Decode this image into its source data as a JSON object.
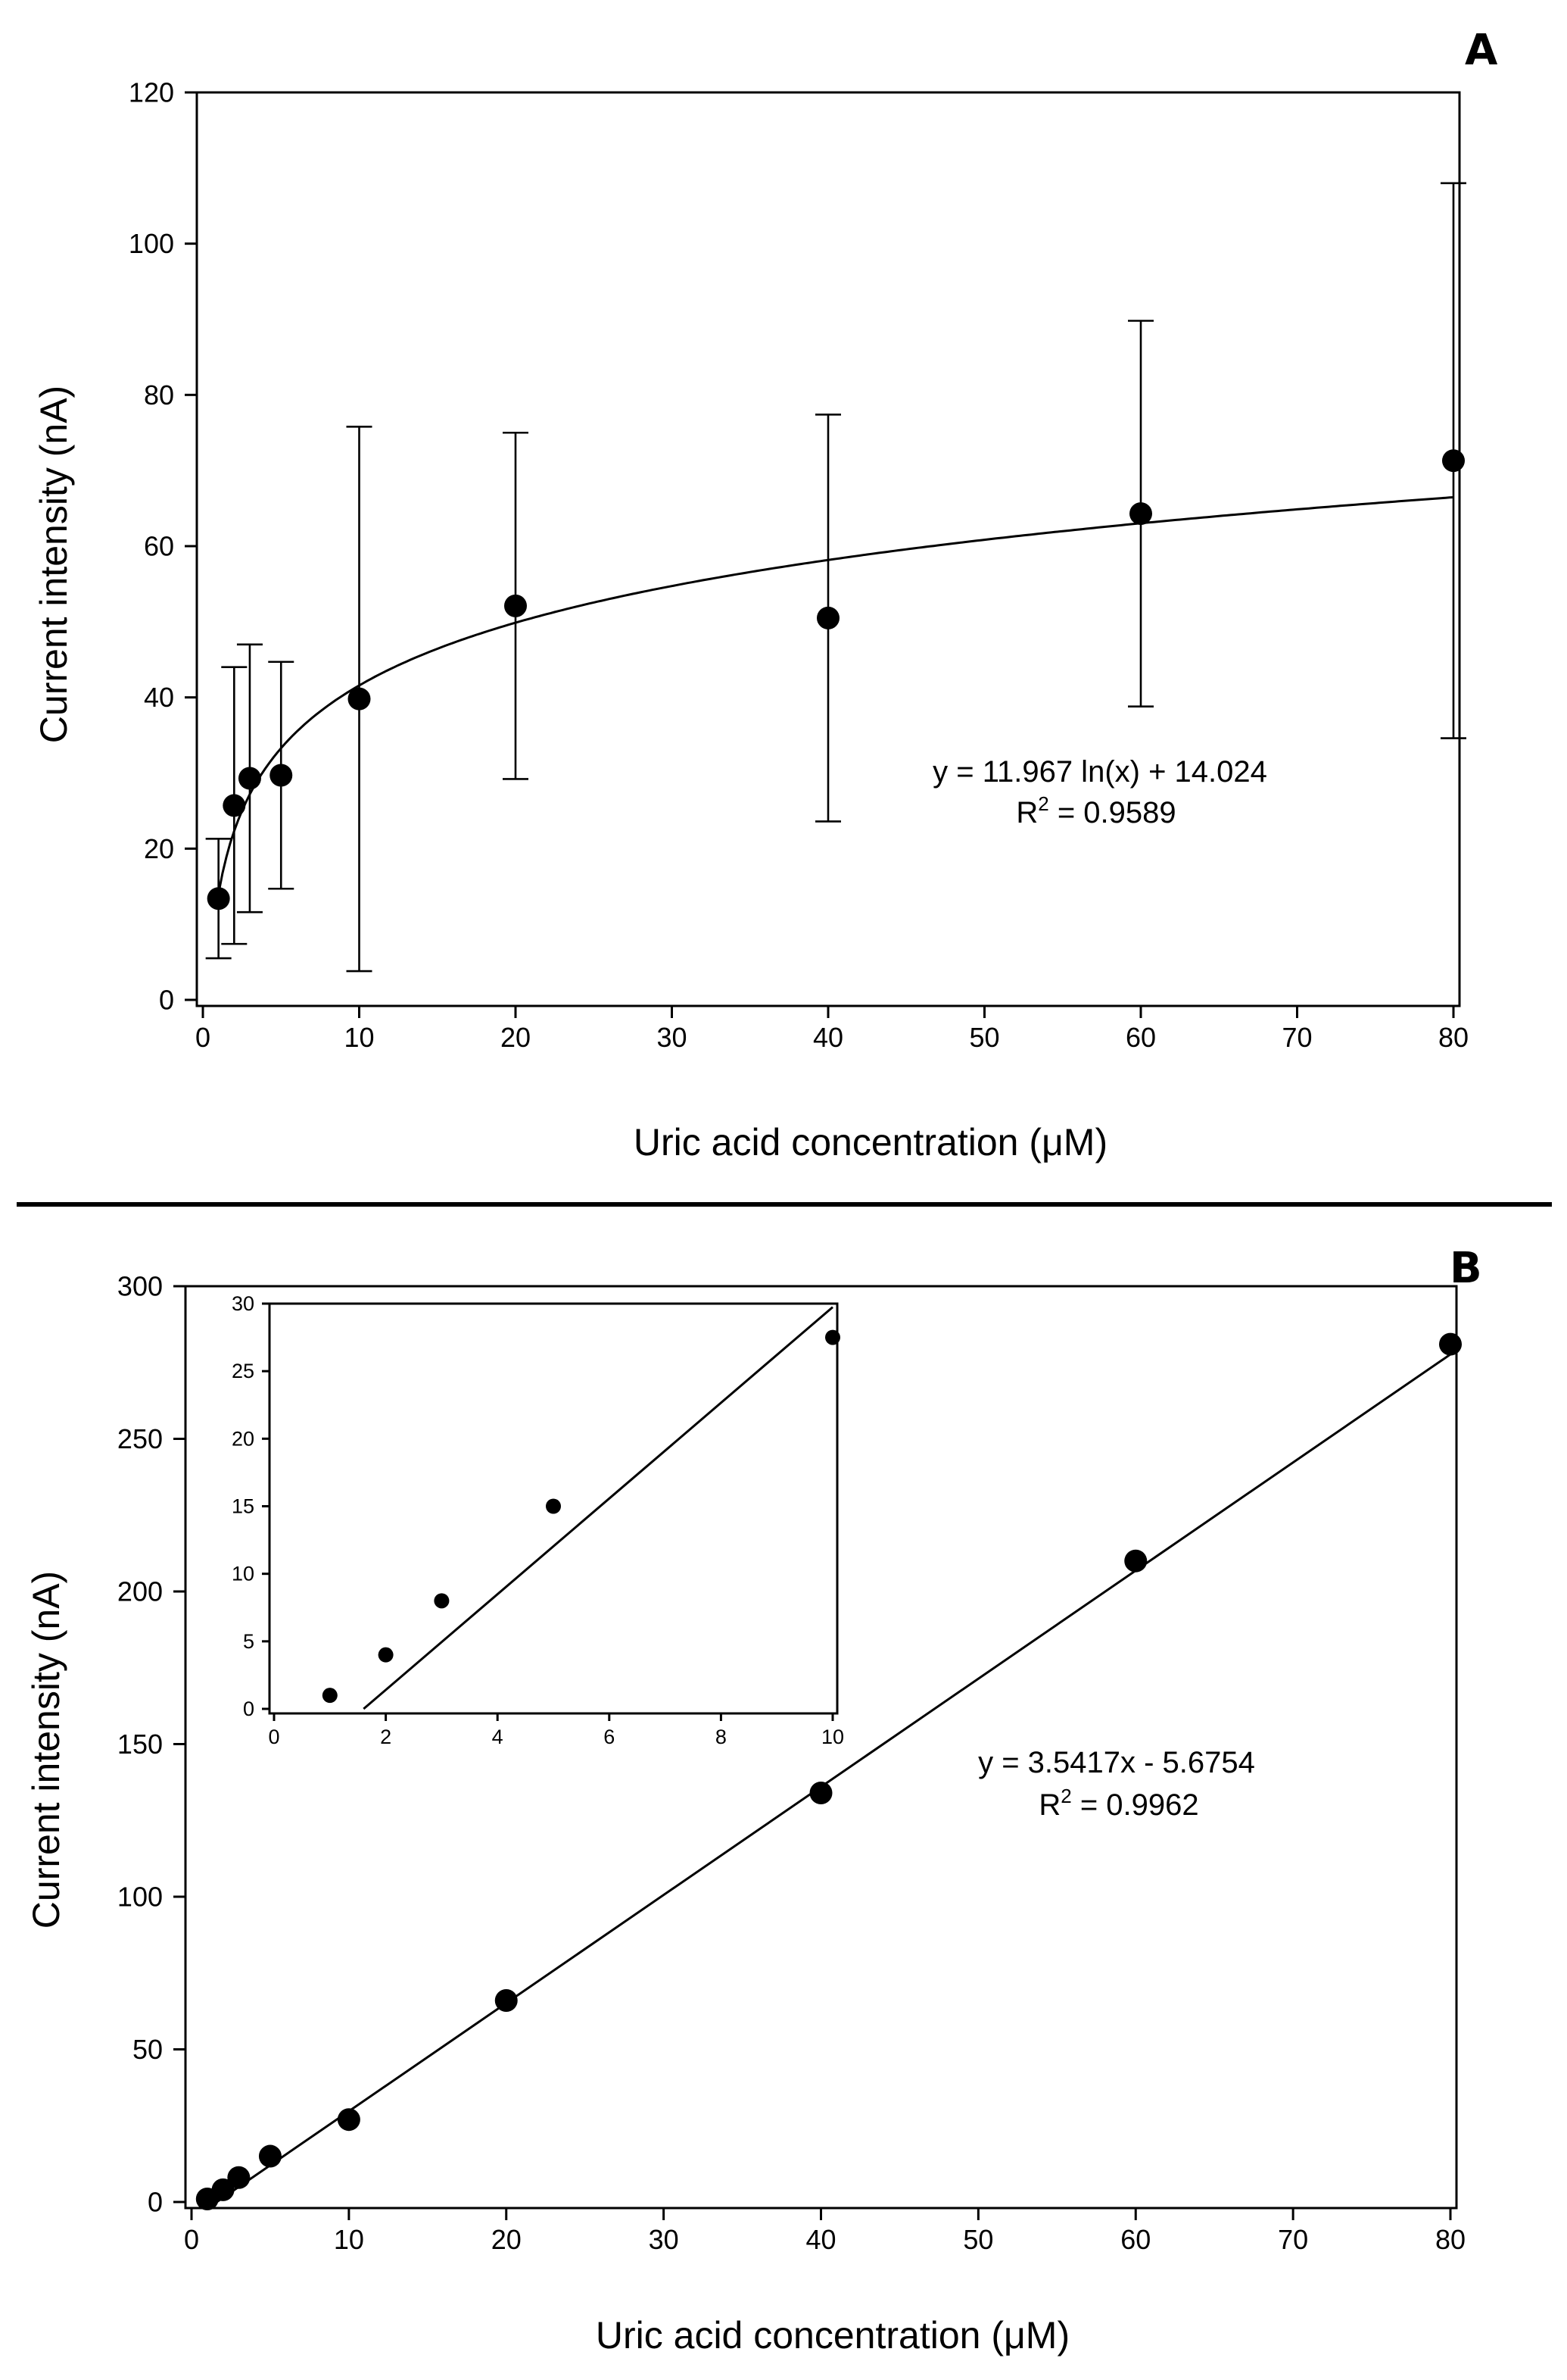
{
  "chart_data": [
    {
      "panel": "A",
      "type": "scatter",
      "xlabel": "Uric acid concentration (μM)",
      "ylabel": "Current intensity (nA)",
      "xlim": [
        0,
        80
      ],
      "ylim": [
        0,
        120
      ],
      "xticks": [
        0,
        10,
        20,
        30,
        40,
        50,
        60,
        70,
        80
      ],
      "yticks": [
        0,
        20,
        40,
        60,
        80,
        100,
        120
      ],
      "x": [
        1,
        2,
        3,
        5,
        10,
        20,
        40,
        60,
        80
      ],
      "y": [
        13.4,
        25.7,
        29.3,
        29.7,
        39.8,
        52.1,
        50.5,
        64.3,
        71.3
      ],
      "error": [
        7.9,
        18.3,
        17.7,
        15.0,
        36.0,
        22.9,
        26.9,
        25.5,
        36.7
      ],
      "fit": {
        "kind": "log",
        "a": 11.967,
        "b": 14.024
      },
      "equation": "y = 11.967 ln(x) + 14.024",
      "r2_label": "R",
      "r2_exp": "2",
      "r2_value": " = 0.9589",
      "grid": false
    },
    {
      "panel": "B",
      "type": "scatter",
      "xlabel": "Uric acid concentration (μM)",
      "ylabel": "Current intensity (nA)",
      "xlim": [
        0,
        80
      ],
      "ylim": [
        0,
        300
      ],
      "xticks": [
        0,
        10,
        20,
        30,
        40,
        50,
        60,
        70,
        80
      ],
      "yticks": [
        0,
        50,
        100,
        150,
        200,
        250,
        300
      ],
      "x": [
        1,
        2,
        3,
        5,
        10,
        20,
        40,
        60,
        80
      ],
      "y": [
        1,
        4,
        8,
        15,
        27,
        66,
        134,
        210,
        281
      ],
      "fit": {
        "kind": "linear",
        "slope": 3.5417,
        "intercept": -5.6754
      },
      "equation": "y = 3.5417x - 5.6754",
      "r2_label": "R",
      "r2_exp": "2",
      "r2_value": " = 0.9962",
      "grid": false,
      "inset": {
        "type": "scatter",
        "xlim": [
          0,
          10
        ],
        "ylim": [
          0,
          30
        ],
        "xticks": [
          0,
          2,
          4,
          6,
          8,
          10
        ],
        "yticks": [
          0,
          5,
          10,
          15,
          20,
          25,
          30
        ],
        "x": [
          1,
          2,
          3,
          5,
          10
        ],
        "y": [
          1,
          4,
          8,
          15,
          27.5
        ],
        "fit": {
          "kind": "linear",
          "slope": 3.5417,
          "intercept": -5.6754
        }
      }
    }
  ]
}
